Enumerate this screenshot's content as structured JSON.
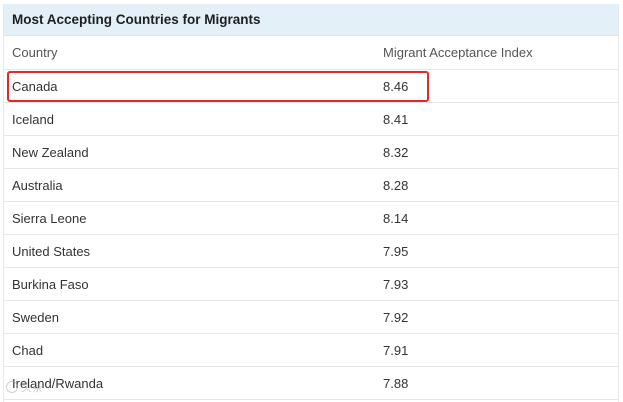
{
  "table": {
    "title": "Most Accepting Countries for Migrants",
    "headers": {
      "country": "Country",
      "index": "Migrant Acceptance Index"
    },
    "rows": [
      {
        "country": "Canada",
        "index": "8.46",
        "highlighted": true
      },
      {
        "country": "Iceland",
        "index": "8.41"
      },
      {
        "country": "New Zealand",
        "index": "8.32"
      },
      {
        "country": "Australia",
        "index": "8.28"
      },
      {
        "country": "Sierra Leone",
        "index": "8.14"
      },
      {
        "country": "United States",
        "index": "7.95"
      },
      {
        "country": "Burkina Faso",
        "index": "7.93"
      },
      {
        "country": "Sweden",
        "index": "7.92"
      },
      {
        "country": "Chad",
        "index": "7.91"
      },
      {
        "country": "Ireland/Rwanda",
        "index": "7.88"
      }
    ],
    "highlight_color": "#e02b2b",
    "title_bar_color": "#e4f0f8"
  },
  "watermark": {
    "icon": "camera-icon",
    "text": "头条"
  }
}
